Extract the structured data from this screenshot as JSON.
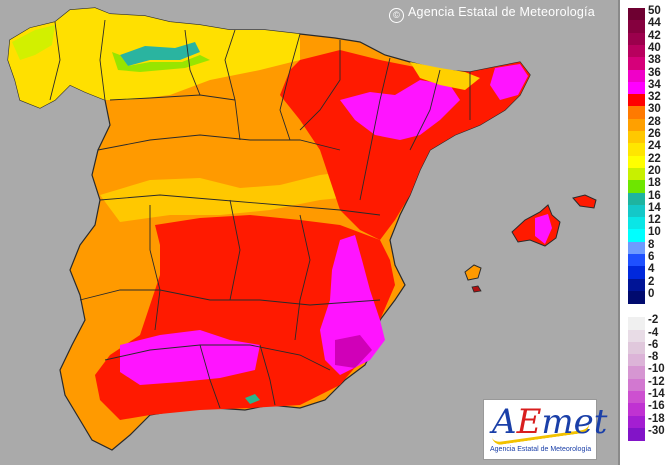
{
  "map": {
    "region": "Spain (Iberian Peninsula and Balearic Islands)",
    "credit_text": "Agencia Estatal de Meteorología",
    "credit_symbol": "©",
    "background_color": "#aaaaaa",
    "border_color": "#2a2a2a"
  },
  "logo": {
    "a": "A",
    "e": "E",
    "met": "met",
    "subtitle": "Agencia Estatal de Meteorología"
  },
  "legend": {
    "warm": [
      {
        "label": "50",
        "color": "#6e0031"
      },
      {
        "label": "44",
        "color": "#85003e"
      },
      {
        "label": "42",
        "color": "#9b004c"
      },
      {
        "label": "40",
        "color": "#b8005e"
      },
      {
        "label": "38",
        "color": "#d6007a"
      },
      {
        "label": "36",
        "color": "#f000c8"
      },
      {
        "label": "34",
        "color": "#ff00ff"
      },
      {
        "label": "32",
        "color": "#ff0000"
      },
      {
        "label": "30",
        "color": "#ff7a00"
      },
      {
        "label": "28",
        "color": "#ffa000"
      },
      {
        "label": "26",
        "color": "#ffc800"
      },
      {
        "label": "24",
        "color": "#ffe600"
      },
      {
        "label": "22",
        "color": "#ffff00"
      },
      {
        "label": "20",
        "color": "#c8f000"
      },
      {
        "label": "18",
        "color": "#6ee600"
      },
      {
        "label": "16",
        "color": "#1eb4a0"
      },
      {
        "label": "14",
        "color": "#14c8c8"
      },
      {
        "label": "12",
        "color": "#0ae6e6"
      },
      {
        "label": "10",
        "color": "#00ffff"
      },
      {
        "label": "8",
        "color": "#6e9bff"
      },
      {
        "label": "6",
        "color": "#1e50ff"
      },
      {
        "label": "4",
        "color": "#0028dc"
      },
      {
        "label": "2",
        "color": "#001496"
      },
      {
        "label": "0",
        "color": "#000a6e"
      }
    ],
    "cold": [
      {
        "label": "-2",
        "color": "#f0f0f0"
      },
      {
        "label": "-4",
        "color": "#e8dce6"
      },
      {
        "label": "-6",
        "color": "#e0c8dc"
      },
      {
        "label": "-8",
        "color": "#dcb4d8"
      },
      {
        "label": "-10",
        "color": "#d696d2"
      },
      {
        "label": "-12",
        "color": "#d278d0"
      },
      {
        "label": "-14",
        "color": "#cd50d0"
      },
      {
        "label": "-16",
        "color": "#c032d2"
      },
      {
        "label": "-18",
        "color": "#a41ed2"
      },
      {
        "label": "-30",
        "color": "#8214c8"
      }
    ]
  }
}
